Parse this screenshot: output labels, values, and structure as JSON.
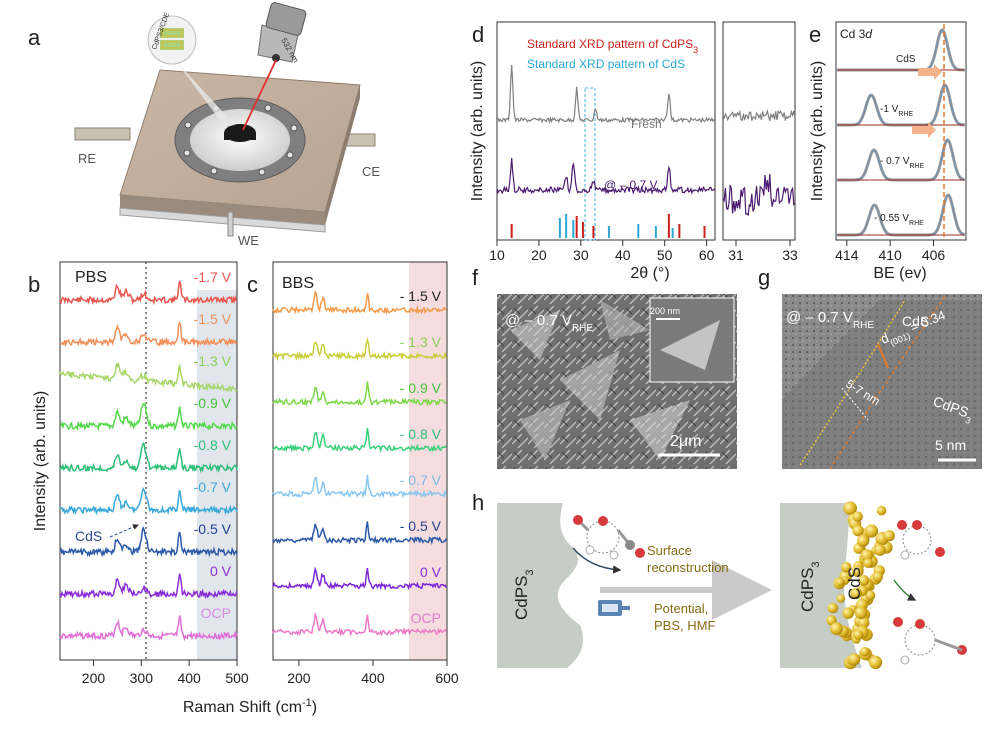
{
  "panels": {
    "a": {
      "letter": "a",
      "labels": {
        "re": "RE",
        "ce": "CE",
        "we": "WE",
        "laser": "532 nm",
        "inset": "CdPS3/CDE"
      }
    },
    "b": {
      "letter": "b",
      "condition": "PBS",
      "cds_label": "CdS",
      "potentials": [
        "-1.7 V",
        "-1.5 V",
        "-1.3 V",
        "-0.9 V",
        "-0.8 V",
        "-0.7 V",
        "-0.5 V",
        "0 V",
        "OCP"
      ],
      "colors": [
        "#e8574d",
        "#f08f5a",
        "#a9d66a",
        "#54d84b",
        "#2fbf78",
        "#3aa8d8",
        "#2c5aa8",
        "#8a2fd8",
        "#e070d8"
      ],
      "label_colors": [
        "#e8574d",
        "#f08f5a",
        "#8ccf55",
        "#47c43c",
        "#2fbf78",
        "#3aa8d8",
        "#243f8f",
        "#8a2fd8",
        "#d98ae0"
      ],
      "x_ticks": [
        "200",
        "300",
        "400",
        "500"
      ],
      "x_title": "Raman Shift (cm",
      "x_title_sup": "-1",
      "x_title_end": ")",
      "y_title": "Intensity (arb. units)"
    },
    "c": {
      "letter": "c",
      "condition": "BBS",
      "potentials": [
        "- 1.5 V",
        "- 1.3 V",
        "- 0.9 V",
        "- 0.8 V",
        "- 0.7 V",
        "- 0.5 V",
        "0 V",
        "OCP"
      ],
      "colors": [
        "#f29a4a",
        "#c8cf3a",
        "#7fd84b",
        "#3bd07a",
        "#8ac7f0",
        "#2c5aa8",
        "#7a28d8",
        "#f07ac8"
      ],
      "label_colors": [
        "#222222",
        "#8ccf55",
        "#47c43c",
        "#2fbf78",
        "#7ab8e8",
        "#243f8f",
        "#8a2fd8",
        "#e07ad0"
      ],
      "x_ticks": [
        "200",
        "400",
        "600"
      ]
    },
    "d": {
      "letter": "d",
      "legend": {
        "cdps3_text": "Standard XRD pattern of CdPS",
        "cdps3_sub": "3",
        "cds_text": "Standard XRD pattern of CdS"
      },
      "trace_labels": {
        "fresh": "Fresh",
        "at": "@ – 0.7 V"
      },
      "x_ticks_main": [
        "10",
        "20",
        "30",
        "40",
        "50",
        "60"
      ],
      "x_ticks_zoom": [
        "31",
        "33"
      ],
      "x_title": "2θ (°)",
      "y_title": "Intensity (arb. units)"
    },
    "e": {
      "letter": "e",
      "title": "Cd 3",
      "title_d": "d",
      "rows": [
        {
          "label": "CdS",
          "sub": ""
        },
        {
          "label": "-1 V",
          "sub": "RHE"
        },
        {
          "label": "- 0.7 V",
          "sub": "RHE"
        },
        {
          "label": "- 0.55 V",
          "sub": "RHE"
        }
      ],
      "x_ticks": [
        "414",
        "410",
        "406"
      ],
      "x_title": "BE (ev)",
      "y_title": "Intensity (arb. units)"
    },
    "f": {
      "letter": "f",
      "label": "@ – 0.7 V",
      "label_sub": "RHE",
      "inset_scale": "200 nm",
      "scale": "2μm"
    },
    "g": {
      "letter": "g",
      "label": "@ – 0.7 V",
      "label_sub": "RHE",
      "cds": "CdS",
      "spacing": "d",
      "spacing_sub": "(001)",
      "spacing_val": " = 0.34",
      "thickness": "5-7 nm",
      "cdps3": "CdPS",
      "cdps3_sub": "3",
      "scale": "5 nm"
    },
    "h": {
      "letter": "h",
      "left_label": "CdPS",
      "left_sub": "3",
      "right_label": "CdPS",
      "right_sub": "3",
      "cds": "CdS",
      "arrow_top": [
        "Surface",
        "reconstruction"
      ],
      "arrow_bottom": [
        "Potential,",
        "PBS, HMF"
      ]
    }
  },
  "chart_data": [
    {
      "type": "line",
      "title": "PBS",
      "xlabel": "Raman Shift (cm-1)",
      "ylabel": "Intensity (arb. units)",
      "xlim": [
        130,
        500
      ],
      "dashed_line_x": 305,
      "series_names": [
        "-1.7 V",
        "-1.5 V",
        "-1.3 V",
        "-0.9 V",
        "-0.8 V",
        "-0.7 V",
        "-0.5 V",
        "0 V",
        "OCP"
      ],
      "peaks": [
        250,
        268,
        305,
        380
      ]
    },
    {
      "type": "line",
      "title": "BBS",
      "xlabel": "Raman Shift (cm-1)",
      "xlim": [
        130,
        600
      ],
      "series_names": [
        "- 1.5 V",
        "- 1.3 V",
        "- 0.9 V",
        "- 0.8 V",
        "- 0.7 V",
        "- 0.5 V",
        "0 V",
        "OCP"
      ],
      "peaks": [
        245,
        265,
        385
      ]
    },
    {
      "type": "line",
      "title": "XRD",
      "xlabel": "2θ (°)",
      "xlim": [
        10,
        62
      ],
      "series_names": [
        "Fresh",
        "@ – 0.7 V"
      ],
      "cdps3_sticks": [
        13.5,
        29.0,
        30.5,
        33.0,
        51.0,
        53.5,
        59.5
      ],
      "cds_sticks": [
        25.0,
        26.5,
        28.2,
        36.7,
        43.7,
        47.9,
        51.9
      ]
    },
    {
      "type": "line",
      "title": "Cd 3d",
      "xlabel": "BE (ev)",
      "xlim": [
        415,
        403
      ],
      "series_names": [
        "CdS",
        "-1 V RHE",
        "- 0.7 V RHE",
        "- 0.55 V RHE"
      ],
      "peaks": [
        412,
        405.2
      ]
    }
  ]
}
